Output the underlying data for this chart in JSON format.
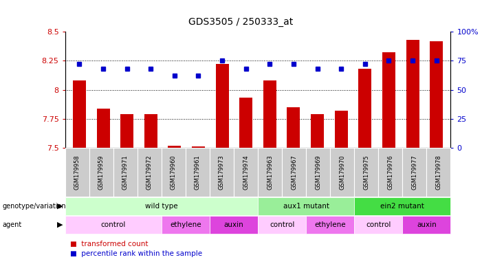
{
  "title": "GDS3505 / 250333_at",
  "samples": [
    "GSM179958",
    "GSM179959",
    "GSM179971",
    "GSM179972",
    "GSM179960",
    "GSM179961",
    "GSM179973",
    "GSM179974",
    "GSM179963",
    "GSM179967",
    "GSM179969",
    "GSM179970",
    "GSM179975",
    "GSM179976",
    "GSM179977",
    "GSM179978"
  ],
  "bar_values": [
    8.08,
    7.84,
    7.79,
    7.79,
    7.52,
    7.51,
    8.22,
    7.93,
    8.08,
    7.85,
    7.79,
    7.82,
    8.18,
    8.32,
    8.43,
    8.42
  ],
  "dot_values": [
    72,
    68,
    68,
    68,
    62,
    62,
    75,
    68,
    72,
    72,
    68,
    68,
    72,
    75,
    75,
    75
  ],
  "ylim_left": [
    7.5,
    8.5
  ],
  "ylim_right": [
    0,
    100
  ],
  "yticks_left": [
    7.5,
    7.75,
    8.0,
    8.25,
    8.5
  ],
  "yticks_right": [
    0,
    25,
    50,
    75,
    100
  ],
  "ytick_labels_left": [
    "7.5",
    "7.75",
    "8",
    "8.25",
    "8.5"
  ],
  "ytick_labels_right": [
    "0",
    "25",
    "50",
    "75",
    "100%"
  ],
  "bar_color": "#cc0000",
  "dot_color": "#0000cc",
  "baseline": 7.5,
  "genotype_groups": [
    {
      "label": "wild type",
      "start": 0,
      "end": 7,
      "color": "#ccffcc"
    },
    {
      "label": "aux1 mutant",
      "start": 8,
      "end": 11,
      "color": "#99ee99"
    },
    {
      "label": "ein2 mutant",
      "start": 12,
      "end": 15,
      "color": "#44dd44"
    }
  ],
  "agent_groups": [
    {
      "label": "control",
      "start": 0,
      "end": 3,
      "color": "#ffccff"
    },
    {
      "label": "ethylene",
      "start": 4,
      "end": 5,
      "color": "#ee77ee"
    },
    {
      "label": "auxin",
      "start": 6,
      "end": 7,
      "color": "#dd44dd"
    },
    {
      "label": "control",
      "start": 8,
      "end": 9,
      "color": "#ffccff"
    },
    {
      "label": "ethylene",
      "start": 10,
      "end": 11,
      "color": "#ee77ee"
    },
    {
      "label": "control",
      "start": 12,
      "end": 13,
      "color": "#ffccff"
    },
    {
      "label": "auxin",
      "start": 14,
      "end": 15,
      "color": "#dd44dd"
    }
  ],
  "tick_bg_color": "#cccccc",
  "legend_bar_color": "#cc0000",
  "legend_dot_color": "#0000cc"
}
